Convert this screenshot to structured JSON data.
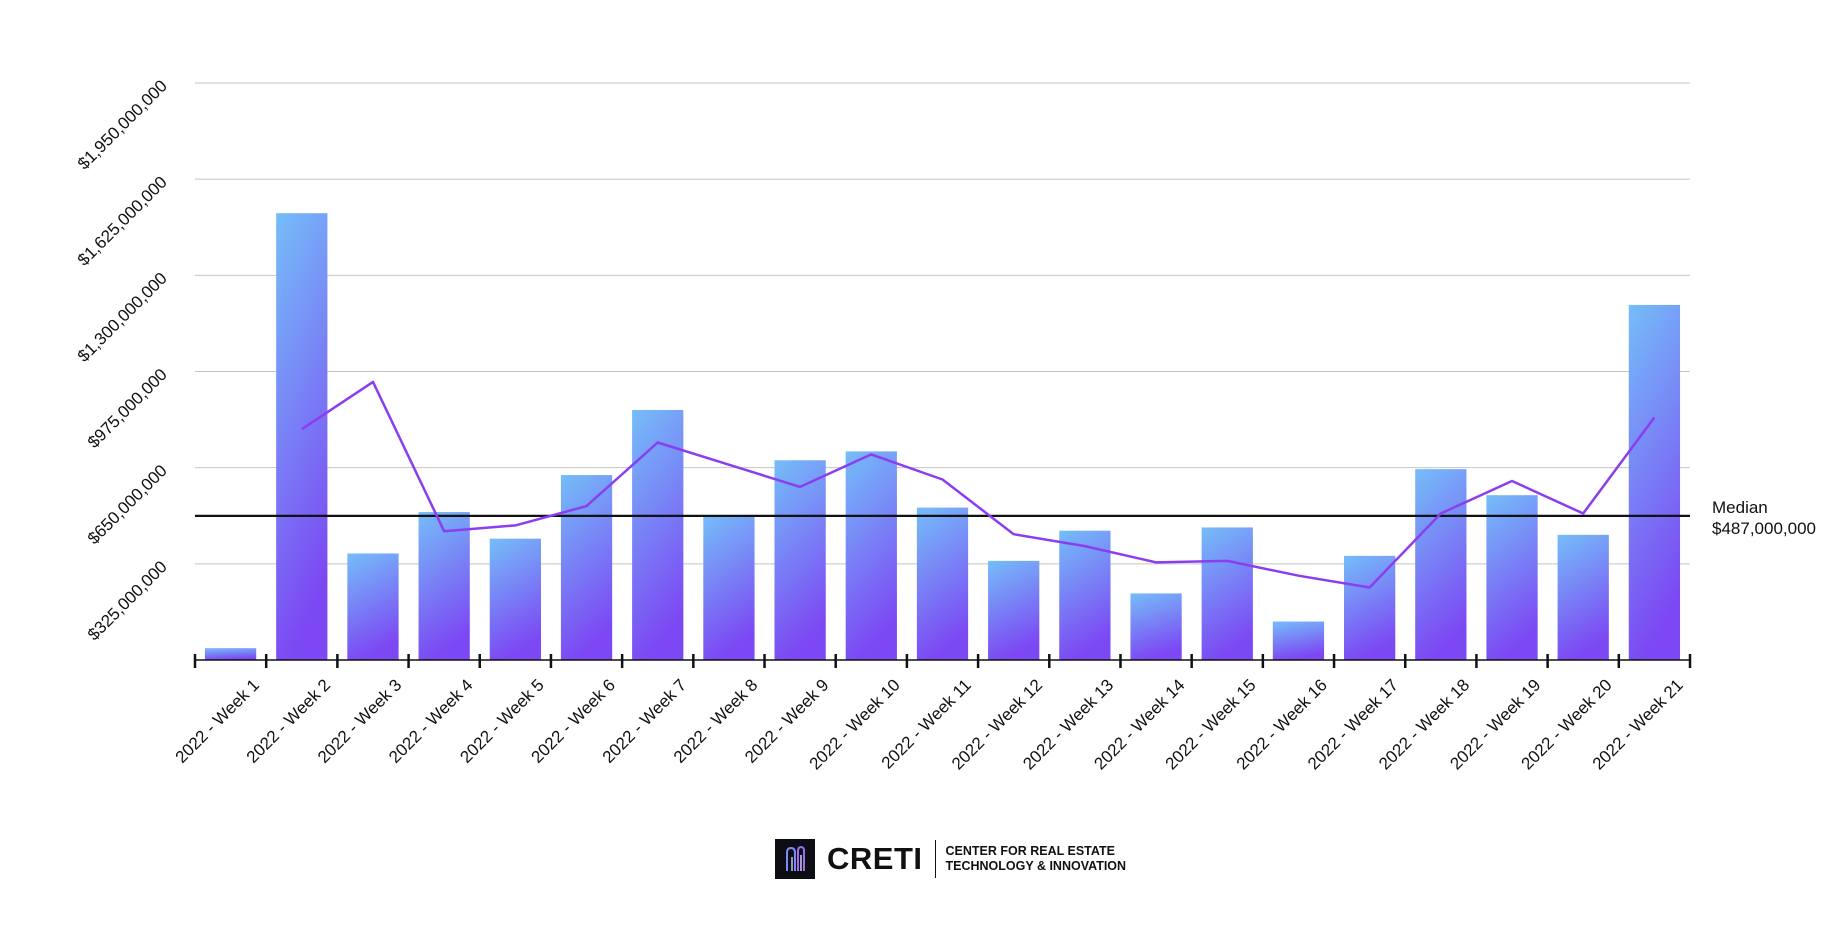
{
  "chart_data": {
    "type": "bar",
    "categories": [
      "2022 - Week 1",
      "2022 - Week 2",
      "2022 - Week 3",
      "2022 - Week 4",
      "2022 - Week 5",
      "2022 - Week 6",
      "2022 - Week 7",
      "2022 - Week 8",
      "2022 - Week 9",
      "2022 - Week 10",
      "2022 - Week 11",
      "2022 - Week 12",
      "2022 - Week 13",
      "2022 - Week 14",
      "2022 - Week 15",
      "2022 - Week 16",
      "2022 - Week 17",
      "2022 - Week 18",
      "2022 - Week 19",
      "2022 - Week 20",
      "2022 - Week 21"
    ],
    "series": [
      {
        "type": "bar",
        "values": [
          40000000,
          1510000000,
          360000000,
          500000000,
          410000000,
          625000000,
          845000000,
          487000000,
          675000000,
          705000000,
          515000000,
          335000000,
          437000000,
          225000000,
          448000000,
          130000000,
          352000000,
          645000000,
          557000000,
          423000000,
          1200000000
        ],
        "color_top": "#75bdf9",
        "color_bottom": "#7c48f3"
      },
      {
        "type": "line",
        "values": [
          null,
          780000000,
          940000000,
          435000000,
          455000000,
          520000000,
          735000000,
          660000000,
          585000000,
          695000000,
          610000000,
          425000000,
          385000000,
          330000000,
          335000000,
          285000000,
          245000000,
          495000000,
          605000000,
          495000000,
          820000000
        ],
        "color": "#8b3ef0"
      }
    ],
    "ylim": [
      0,
      1950000000
    ],
    "yticks": [
      325000000,
      650000000,
      975000000,
      1300000000,
      1625000000,
      1950000000
    ],
    "ytick_labels": [
      "$325,000,000",
      "$650,000,000",
      "$975,000,000",
      "$1,300,000,000",
      "$1,625,000,000",
      "$1,950,000,000"
    ],
    "grid": true,
    "median": {
      "value": 487000000,
      "label": "Median",
      "value_label": "$487,000,000"
    }
  },
  "footer": {
    "brand": "CRETI",
    "tagline_line1": "CENTER FOR REAL ESTATE",
    "tagline_line2": "TECHNOLOGY & INNOVATION"
  }
}
